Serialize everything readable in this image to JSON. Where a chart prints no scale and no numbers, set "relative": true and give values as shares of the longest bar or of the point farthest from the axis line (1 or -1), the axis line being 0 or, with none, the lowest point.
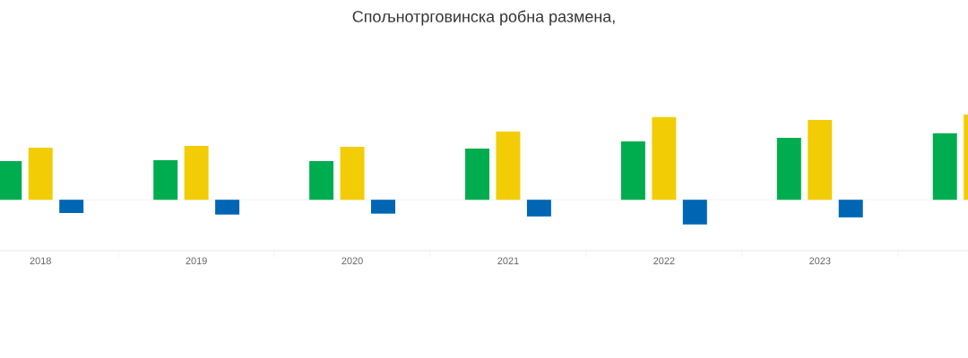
{
  "chart_data": {
    "type": "bar",
    "title": "Спољнотрговинска робна размена,",
    "categories": [
      "2018",
      "2019",
      "2020",
      "2021",
      "2022",
      "2023",
      null
    ],
    "relative": true,
    "series": [
      {
        "color": "#00ad4e",
        "values": [
          0.453,
          0.464,
          0.453,
          0.601,
          0.685,
          0.728,
          0.779
        ]
      },
      {
        "color": "#f2cd05",
        "values": [
          0.612,
          0.634,
          0.623,
          0.801,
          0.971,
          0.938,
          1
        ]
      },
      {
        "color": "#0066b3",
        "values": [
          -0.156,
          -0.174,
          -0.163,
          -0.196,
          -0.29,
          -0.207,
          null
        ]
      }
    ]
  }
}
